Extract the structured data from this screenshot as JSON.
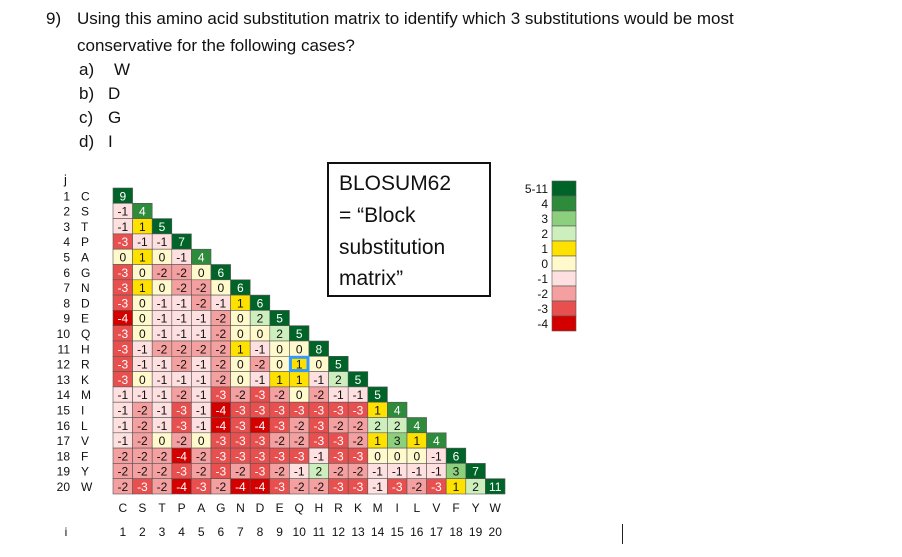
{
  "question": {
    "number": "9)",
    "line1": "Using this amino acid substitution matrix to identify which 3 substitutions would be most",
    "line2": "conservative for the following cases?",
    "options": [
      {
        "label": "a)",
        "value": "W"
      },
      {
        "label": "b)",
        "value": "D"
      },
      {
        "label": "c)",
        "value": "G"
      },
      {
        "label": "d)",
        "value": "I"
      }
    ]
  },
  "box": {
    "title": "BLOSUM62",
    "line2": "= “Block",
    "line3": "substitution",
    "line4": "matrix”"
  },
  "axis": {
    "row_header": "j",
    "col_header": "i"
  },
  "amino_acids": [
    "C",
    "S",
    "T",
    "P",
    "A",
    "G",
    "N",
    "D",
    "E",
    "Q",
    "H",
    "R",
    "K",
    "M",
    "I",
    "L",
    "V",
    "F",
    "Y",
    "W"
  ],
  "legend": {
    "values": [
      "5-11",
      "4",
      "3",
      "2",
      "1",
      "0",
      "-1",
      "-2",
      "-3",
      "-4"
    ],
    "colors": [
      "#006428",
      "#2e8b3c",
      "#8ccf7c",
      "#cdeebd",
      "#ffe100",
      "#fff9cc",
      "#ffe0e0",
      "#f4a0a0",
      "#e85050",
      "#d40000"
    ]
  },
  "highlight": {
    "row": 11,
    "col": 9,
    "color": "#3399ff"
  },
  "matrix_rows": [
    [
      9
    ],
    [
      -1,
      4
    ],
    [
      -1,
      1,
      5
    ],
    [
      -3,
      -1,
      -1,
      7
    ],
    [
      0,
      1,
      0,
      -1,
      4
    ],
    [
      -3,
      0,
      -2,
      -2,
      0,
      6
    ],
    [
      -3,
      1,
      0,
      -2,
      -2,
      0,
      6
    ],
    [
      -3,
      0,
      -1,
      -1,
      -2,
      -1,
      1,
      6
    ],
    [
      -4,
      0,
      -1,
      -1,
      -1,
      -2,
      0,
      2,
      5
    ],
    [
      -3,
      0,
      -1,
      -1,
      -1,
      -2,
      0,
      0,
      2,
      5
    ],
    [
      -3,
      -1,
      -2,
      -2,
      -2,
      -2,
      1,
      -1,
      0,
      0,
      8
    ],
    [
      -3,
      -1,
      -1,
      -2,
      -1,
      -2,
      0,
      -2,
      0,
      1,
      0,
      5
    ],
    [
      -3,
      0,
      -1,
      -1,
      -1,
      -2,
      0,
      -1,
      1,
      1,
      -1,
      2,
      5
    ],
    [
      -1,
      -1,
      -1,
      -2,
      -1,
      -3,
      -2,
      -3,
      -2,
      0,
      -2,
      -1,
      -1,
      5
    ],
    [
      -1,
      -2,
      -1,
      -3,
      -1,
      -4,
      -3,
      -3,
      -3,
      -3,
      -3,
      -3,
      -3,
      1,
      4
    ],
    [
      -1,
      -2,
      -1,
      -3,
      -1,
      -4,
      -3,
      -4,
      -3,
      -2,
      -3,
      -2,
      -2,
      2,
      2,
      4
    ],
    [
      -1,
      -2,
      0,
      -2,
      0,
      -3,
      -3,
      -3,
      -2,
      -2,
      -3,
      -3,
      -2,
      1,
      3,
      1,
      4
    ],
    [
      -2,
      -2,
      -2,
      -4,
      -2,
      -3,
      -3,
      -3,
      -3,
      -3,
      -1,
      -3,
      -3,
      0,
      0,
      0,
      -1,
      6
    ],
    [
      -2,
      -2,
      -2,
      -3,
      -2,
      -3,
      -2,
      -3,
      -2,
      -1,
      2,
      -2,
      -2,
      -1,
      -1,
      -1,
      -1,
      3,
      7
    ],
    [
      -2,
      -3,
      -2,
      -4,
      -3,
      -2,
      -4,
      -4,
      -3,
      -2,
      -2,
      -3,
      -3,
      -1,
      -3,
      -2,
      -3,
      1,
      2,
      11
    ]
  ]
}
